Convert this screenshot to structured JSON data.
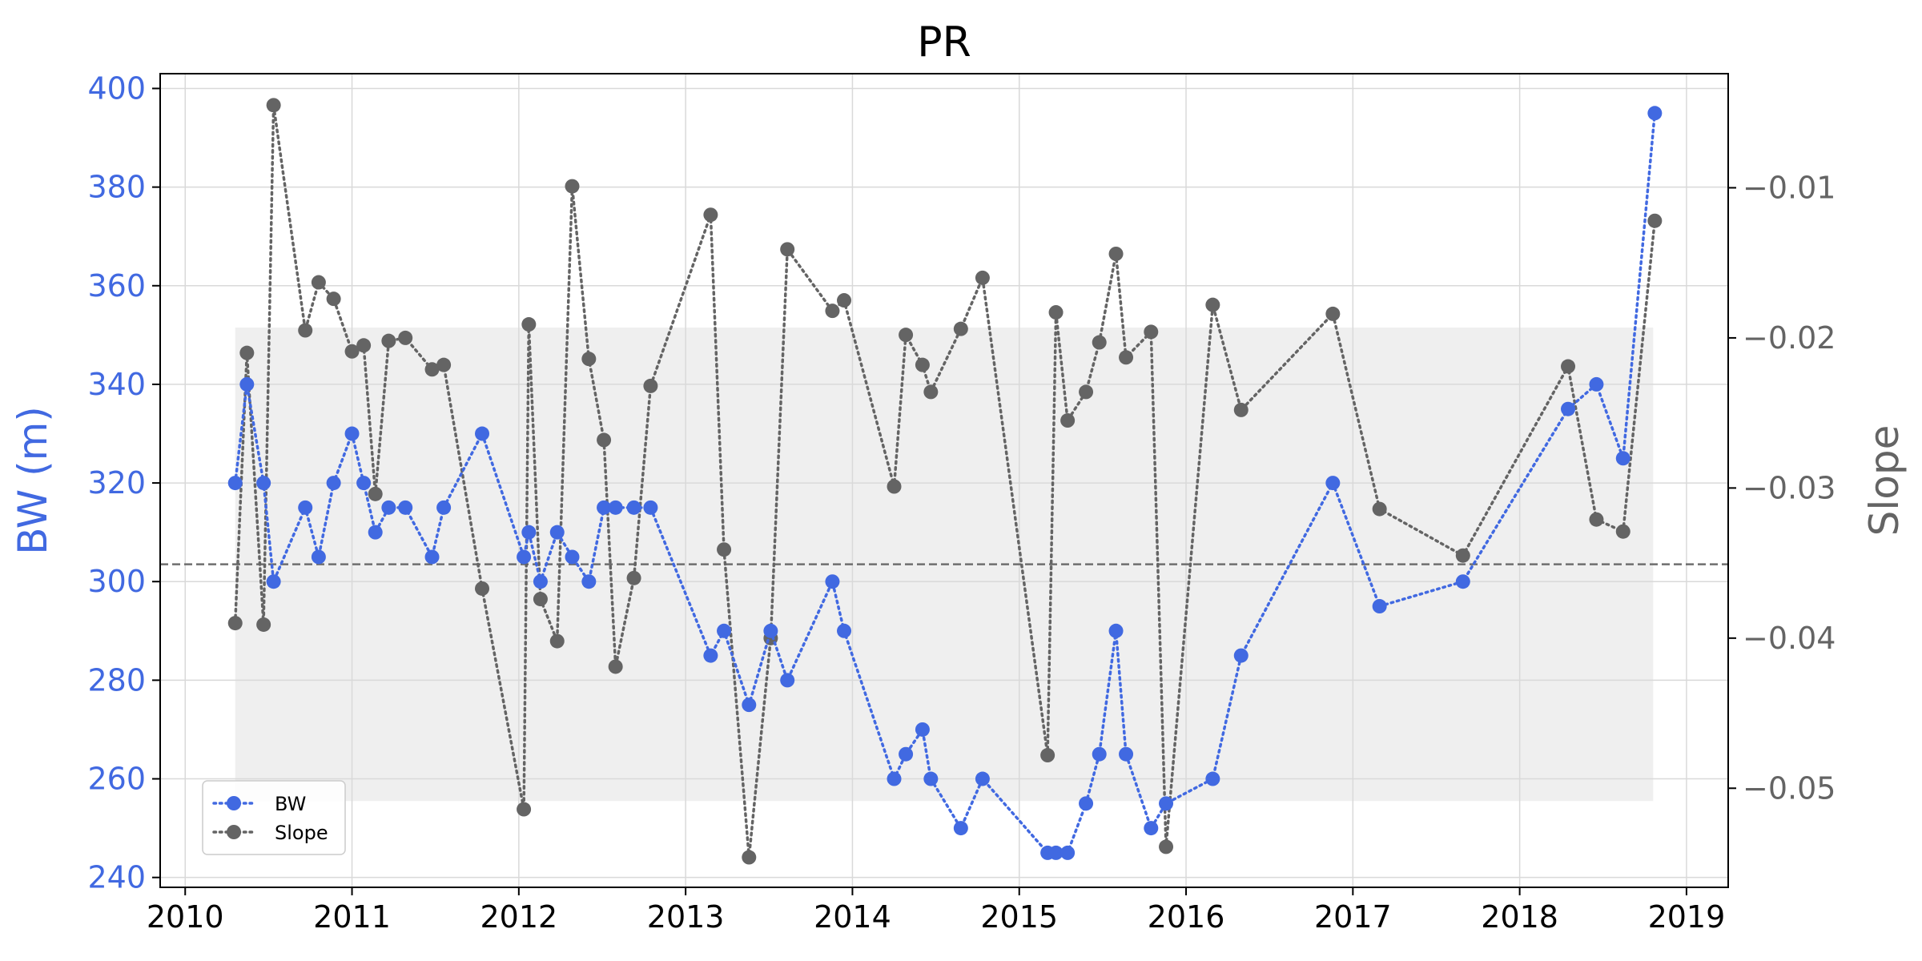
{
  "chart_data": {
    "type": "line",
    "title": "PR",
    "xlabel": "",
    "ylabel": "BW (m)",
    "y2label": "Slope",
    "xlim": [
      2009.85,
      2019.25
    ],
    "ylim": [
      238,
      403
    ],
    "y2lim": [
      -0.0566,
      -0.0024
    ],
    "x_ticks": [
      2010,
      2011,
      2012,
      2013,
      2014,
      2015,
      2016,
      2017,
      2018,
      2019
    ],
    "y_ticks": [
      240,
      260,
      280,
      300,
      320,
      340,
      360,
      380,
      400
    ],
    "y2_ticks": [
      -0.05,
      -0.04,
      -0.03,
      -0.02,
      -0.01
    ],
    "y2_tick_labels": [
      "−0.05",
      "−0.04",
      "−0.03",
      "−0.02",
      "−0.01"
    ],
    "grid": true,
    "legend_position": "lower-left",
    "shaded_band": {
      "x": [
        2010.3,
        2018.8
      ],
      "y": [
        255.5,
        351.5
      ]
    },
    "reference_line_y": 303.5,
    "colors": {
      "bw": "#4169e1",
      "slope": "#646464",
      "band": "#efefef",
      "grid": "#d9d9d9",
      "ref": "#6e6e6e"
    },
    "series": [
      {
        "name": "BW",
        "axis": "left",
        "x": [
          2010.3,
          2010.37,
          2010.47,
          2010.53,
          2010.72,
          2010.8,
          2010.89,
          2011.0,
          2011.07,
          2011.14,
          2011.22,
          2011.32,
          2011.48,
          2011.55,
          2011.78,
          2012.03,
          2012.06,
          2012.13,
          2012.23,
          2012.32,
          2012.42,
          2012.51,
          2012.58,
          2012.69,
          2012.79,
          2013.15,
          2013.23,
          2013.38,
          2013.51,
          2013.61,
          2013.88,
          2013.95,
          2014.25,
          2014.32,
          2014.42,
          2014.47,
          2014.65,
          2014.78,
          2015.17,
          2015.22,
          2015.29,
          2015.4,
          2015.48,
          2015.58,
          2015.64,
          2015.79,
          2015.88,
          2016.16,
          2016.33,
          2016.88,
          2017.16,
          2017.66,
          2018.29,
          2018.46,
          2018.62,
          2018.81
        ],
        "y": [
          320,
          340,
          320,
          300,
          315,
          305,
          320,
          330,
          320,
          310,
          315,
          315,
          305,
          315,
          330,
          305,
          310,
          300,
          310,
          305,
          300,
          315,
          315,
          315,
          315,
          285,
          290,
          275,
          290,
          280,
          300,
          290,
          260,
          265,
          270,
          260,
          250,
          260,
          245,
          245,
          245,
          255,
          265,
          290,
          265,
          250,
          255,
          260,
          285,
          320,
          295,
          300,
          335,
          340,
          325,
          395
        ]
      },
      {
        "name": "Slope",
        "axis": "right",
        "x": [
          2010.3,
          2010.37,
          2010.47,
          2010.53,
          2010.72,
          2010.8,
          2010.89,
          2011.0,
          2011.07,
          2011.14,
          2011.22,
          2011.32,
          2011.48,
          2011.55,
          2011.78,
          2012.03,
          2012.06,
          2012.13,
          2012.23,
          2012.32,
          2012.42,
          2012.51,
          2012.58,
          2012.69,
          2012.79,
          2013.15,
          2013.23,
          2013.38,
          2013.51,
          2013.61,
          2013.88,
          2013.95,
          2014.25,
          2014.32,
          2014.42,
          2014.47,
          2014.65,
          2014.78,
          2015.17,
          2015.22,
          2015.29,
          2015.4,
          2015.48,
          2015.58,
          2015.64,
          2015.79,
          2015.88,
          2016.16,
          2016.33,
          2016.88,
          2017.16,
          2017.66,
          2018.29,
          2018.46,
          2018.62,
          2018.81
        ],
        "y": [
          -0.039,
          -0.021,
          -0.0391,
          -0.0045,
          -0.0195,
          -0.0163,
          -0.0174,
          -0.0209,
          -0.0205,
          -0.0304,
          -0.0202,
          -0.02,
          -0.0221,
          -0.0218,
          -0.0367,
          -0.0514,
          -0.0191,
          -0.0374,
          -0.0402,
          -0.0099,
          -0.0214,
          -0.0268,
          -0.0419,
          -0.036,
          -0.0232,
          -0.0118,
          -0.0341,
          -0.0546,
          -0.04,
          -0.0141,
          -0.0182,
          -0.0175,
          -0.0299,
          -0.0198,
          -0.0218,
          -0.0236,
          -0.0194,
          -0.016,
          -0.0478,
          -0.0183,
          -0.0255,
          -0.0236,
          -0.0203,
          -0.0144,
          -0.0213,
          -0.0196,
          -0.0539,
          -0.0178,
          -0.0248,
          -0.0184,
          -0.0314,
          -0.0345,
          -0.0219,
          -0.0321,
          -0.0329,
          -0.0122
        ]
      }
    ]
  }
}
